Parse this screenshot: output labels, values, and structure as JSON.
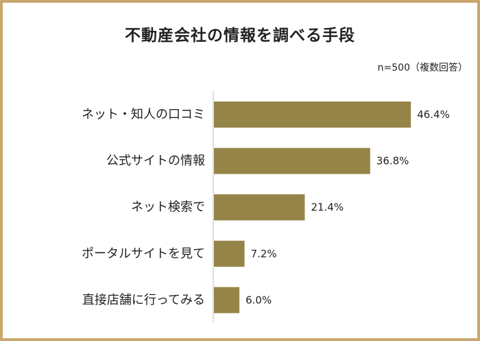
{
  "title": "不動産会社の情報を調べる手段",
  "note": "n=500（複数回答）",
  "colors": {
    "bar": "#958447",
    "frame": "#c8a66e",
    "axis": "#bfbfbf",
    "text": "#222222"
  },
  "chart_data": {
    "type": "bar",
    "orientation": "horizontal",
    "title": "不動産会社の情報を調べる手段",
    "categories": [
      "ネット・知人の口コミ",
      "公式サイトの情報",
      "ネット検索で",
      "ポータルサイトを見て",
      "直接店舗に行ってみる"
    ],
    "values": [
      46.4,
      36.8,
      21.4,
      7.2,
      6.0
    ],
    "value_labels": [
      "46.4%",
      "36.8%",
      "21.4%",
      "7.2%",
      "6.0%"
    ],
    "unit": "%",
    "xlim": [
      0,
      50
    ],
    "grid": false,
    "legend": "none"
  }
}
